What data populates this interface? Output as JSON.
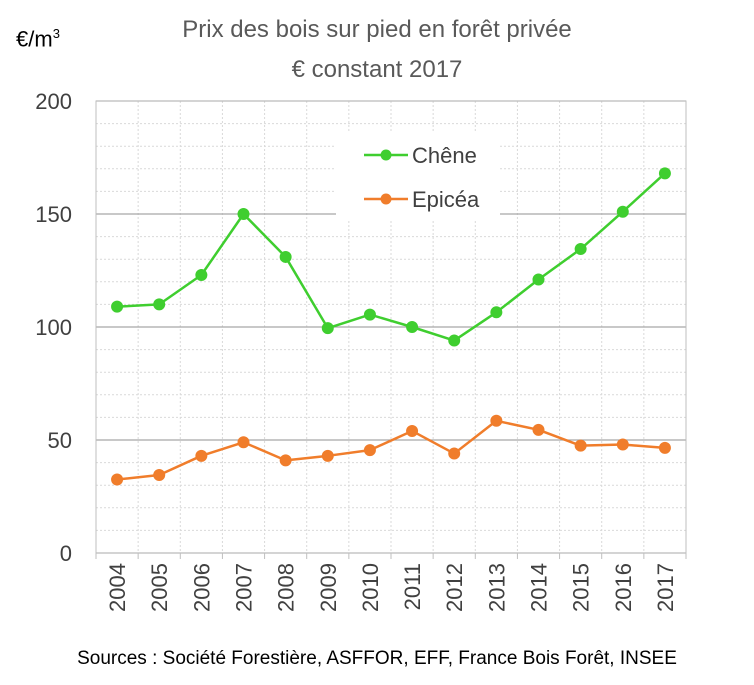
{
  "chart_data": {
    "type": "line",
    "title": "Prix des bois sur pied en forêt privée",
    "subtitle": "€ constant 2017",
    "ylabel": "€/m",
    "ylabel_superscript": "3",
    "x": [
      "2004",
      "2005",
      "2006",
      "2007",
      "2008",
      "2009",
      "2010",
      "2011",
      "2012",
      "2013",
      "2014",
      "2015",
      "2016",
      "2017"
    ],
    "ylim": [
      0,
      200
    ],
    "yticks": [
      0,
      50,
      100,
      150,
      200
    ],
    "minor_grid_step": 10,
    "grid": true,
    "legend_position": "top-center",
    "series": [
      {
        "name": "Chêne",
        "color": "#3fce2f",
        "values": [
          109,
          110,
          123,
          150,
          131,
          99.5,
          105.5,
          100,
          94,
          106.5,
          121,
          134.5,
          151,
          168
        ]
      },
      {
        "name": "Epicéa",
        "color": "#f07d2b",
        "values": [
          32.5,
          34.5,
          43,
          49,
          41,
          43,
          45.5,
          54,
          44,
          58.5,
          54.5,
          47.5,
          48,
          46.5
        ]
      }
    ]
  },
  "source": "Sources : Société Forestière, ASFFOR, EFF, France Bois Forêt, INSEE"
}
